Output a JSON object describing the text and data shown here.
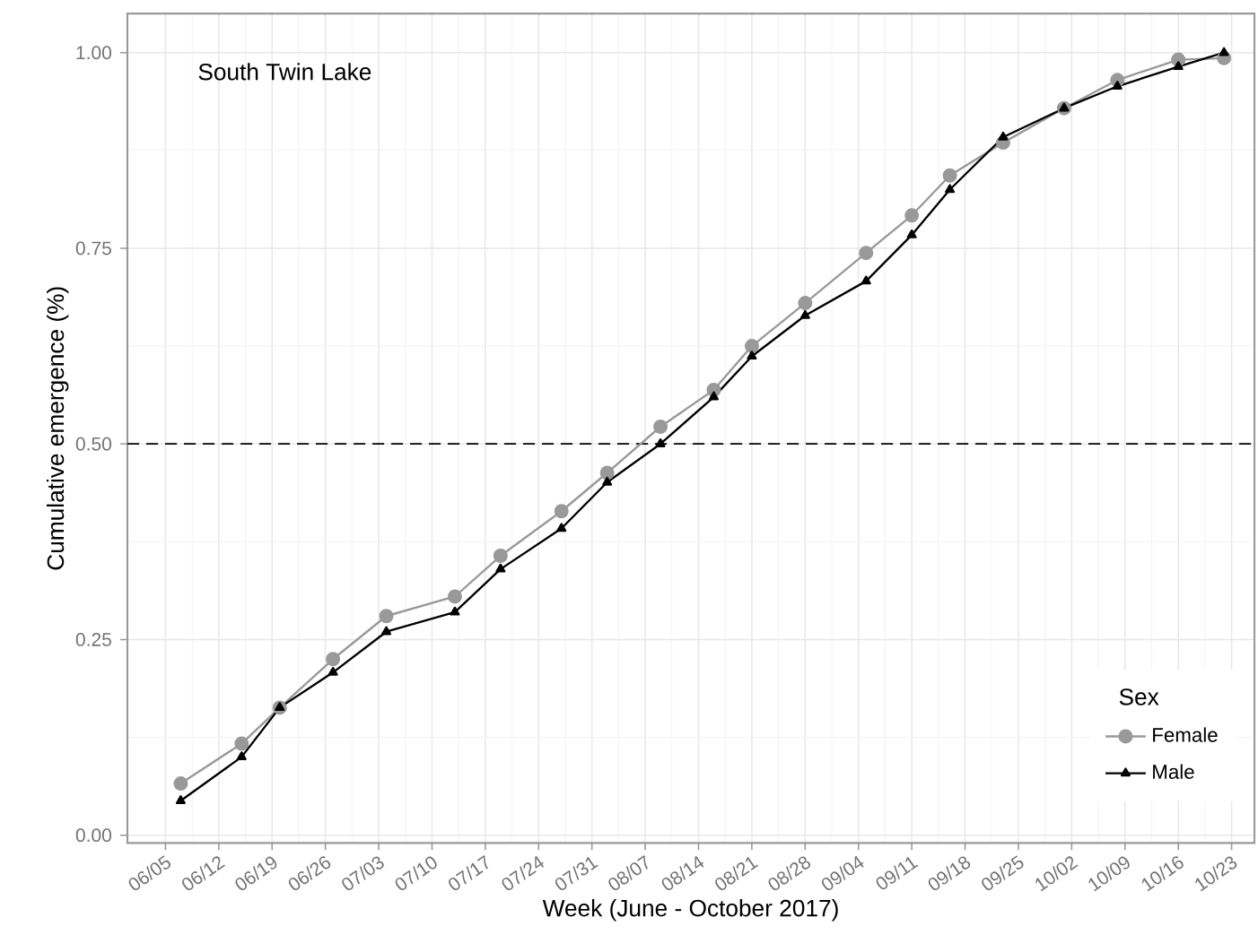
{
  "chart_data": {
    "type": "line",
    "xlabel": "Week (June - October 2017)",
    "ylabel": "Cumulative emergence (%)",
    "legend_title": "Sex",
    "annotations": [
      "South Twin Lake"
    ],
    "x": [
      "2017-06-07",
      "2017-06-15",
      "2017-06-20",
      "2017-06-27",
      "2017-07-04",
      "2017-07-13",
      "2017-07-19",
      "2017-07-27",
      "2017-08-02",
      "2017-08-09",
      "2017-08-16",
      "2017-08-21",
      "2017-08-28",
      "2017-09-05",
      "2017-09-11",
      "2017-09-16",
      "2017-09-23",
      "2017-10-01",
      "2017-10-08",
      "2017-10-16",
      "2017-10-22"
    ],
    "series": [
      {
        "name": "Female",
        "color": "#999999",
        "marker": "circle",
        "values": [
          0.066,
          0.117,
          0.163,
          0.225,
          0.28,
          0.305,
          0.357,
          0.414,
          0.463,
          0.522,
          0.569,
          0.625,
          0.68,
          0.744,
          0.792,
          0.843,
          0.885,
          0.929,
          0.965,
          0.991,
          0.993
        ]
      },
      {
        "name": "Male",
        "color": "#000000",
        "marker": "triangle",
        "values": [
          0.044,
          0.1,
          0.163,
          0.208,
          0.26,
          0.285,
          0.34,
          0.392,
          0.451,
          0.5,
          0.56,
          0.612,
          0.664,
          0.708,
          0.767,
          0.825,
          0.892,
          0.929,
          0.957,
          0.982,
          1.0
        ]
      }
    ],
    "xlim": [
      "2017-05-31",
      "2017-10-26"
    ],
    "xticks": [
      {
        "value": "2017-06-05",
        "label": "06/05"
      },
      {
        "value": "2017-06-12",
        "label": "06/12"
      },
      {
        "value": "2017-06-19",
        "label": "06/19"
      },
      {
        "value": "2017-06-26",
        "label": "06/26"
      },
      {
        "value": "2017-07-03",
        "label": "07/03"
      },
      {
        "value": "2017-07-10",
        "label": "07/10"
      },
      {
        "value": "2017-07-17",
        "label": "07/17"
      },
      {
        "value": "2017-07-24",
        "label": "07/24"
      },
      {
        "value": "2017-07-31",
        "label": "07/31"
      },
      {
        "value": "2017-08-07",
        "label": "08/07"
      },
      {
        "value": "2017-08-14",
        "label": "08/14"
      },
      {
        "value": "2017-08-21",
        "label": "08/21"
      },
      {
        "value": "2017-08-28",
        "label": "08/28"
      },
      {
        "value": "2017-09-04",
        "label": "09/04"
      },
      {
        "value": "2017-09-11",
        "label": "09/11"
      },
      {
        "value": "2017-09-18",
        "label": "09/18"
      },
      {
        "value": "2017-09-25",
        "label": "09/25"
      },
      {
        "value": "2017-10-02",
        "label": "10/02"
      },
      {
        "value": "2017-10-09",
        "label": "10/09"
      },
      {
        "value": "2017-10-16",
        "label": "10/16"
      },
      {
        "value": "2017-10-23",
        "label": "10/23"
      }
    ],
    "ylim": [
      -0.01,
      1.05
    ],
    "yticks": [
      {
        "value": 0,
        "label": "0.00"
      },
      {
        "value": 0.25,
        "label": "0.25"
      },
      {
        "value": 0.5,
        "label": "0.50"
      },
      {
        "value": 0.75,
        "label": "0.75"
      },
      {
        "value": 1,
        "label": "1.00"
      }
    ],
    "ref_lines": [
      {
        "axis": "y",
        "value": 0.5,
        "line_style": "dashed",
        "color": "#000000"
      }
    ],
    "grid": true,
    "legend": "bottom right",
    "line_style": "solid"
  }
}
